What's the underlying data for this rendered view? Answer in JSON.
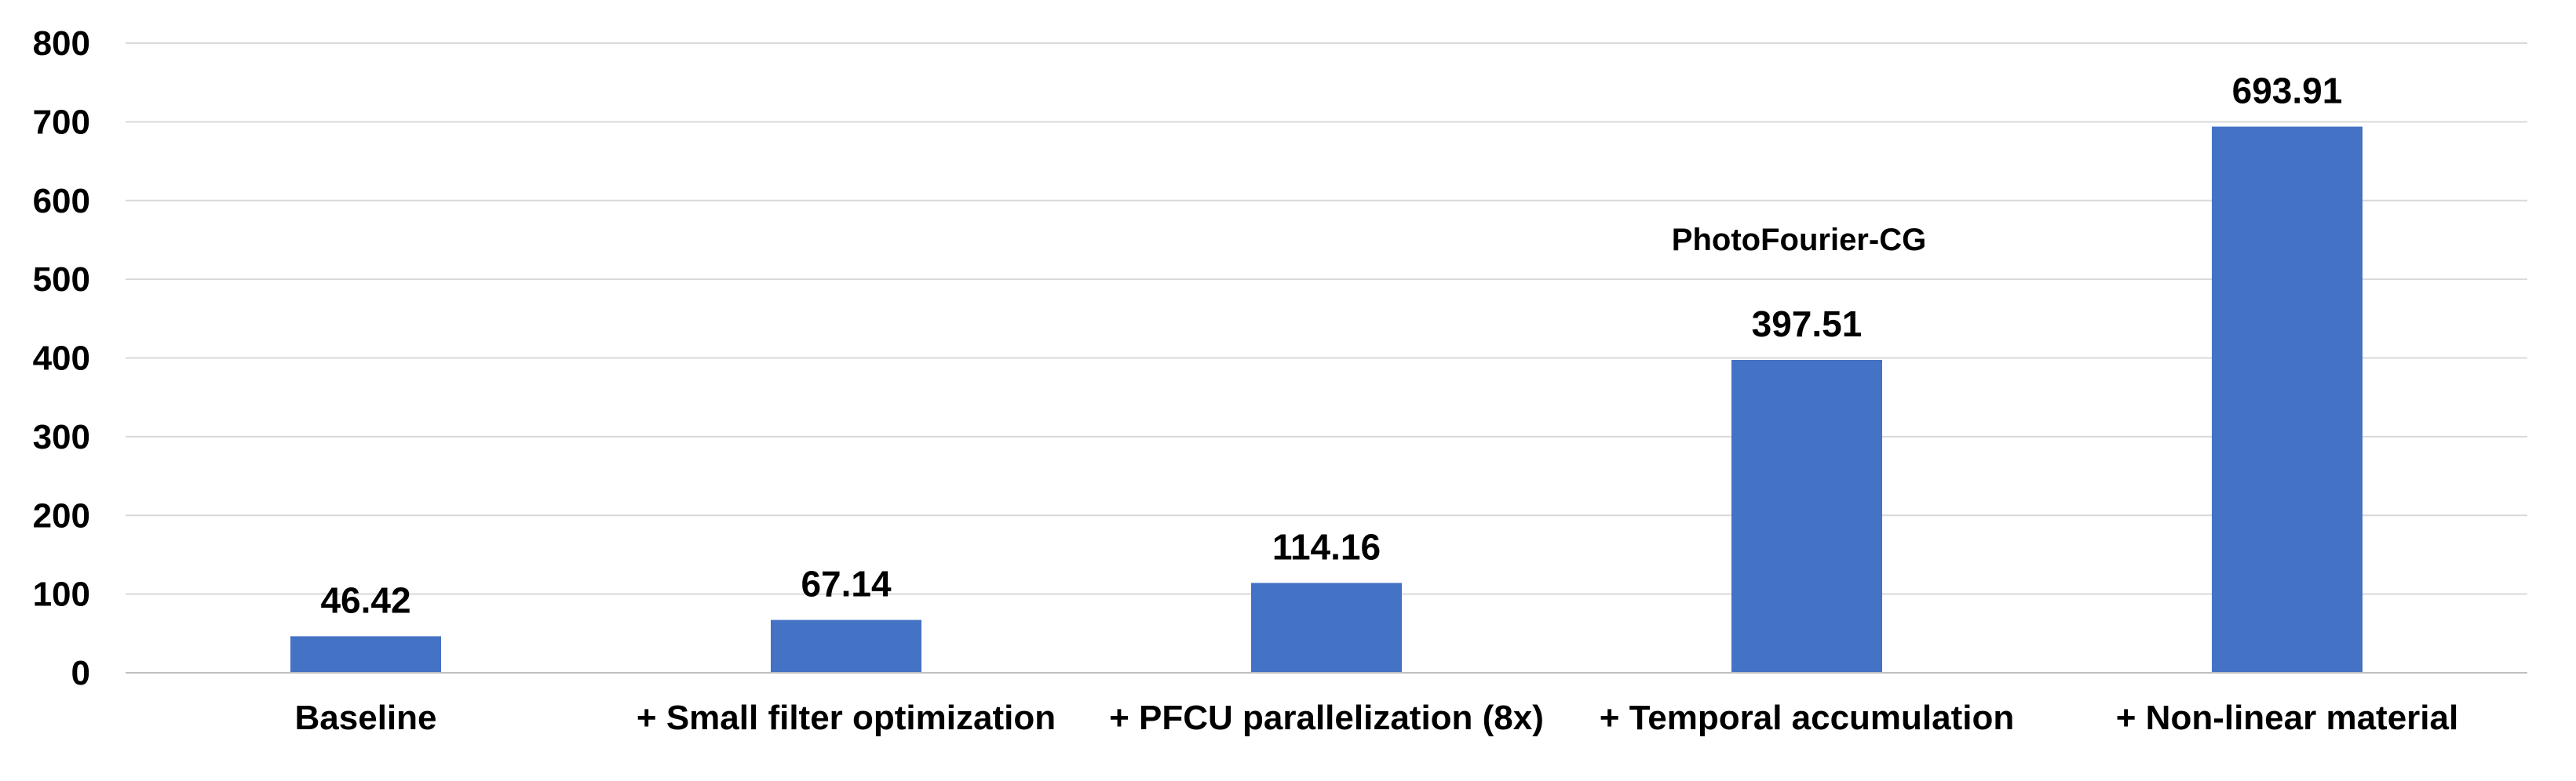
{
  "chart_data": {
    "type": "bar",
    "title": "",
    "xlabel": "",
    "ylabel": "",
    "ylim": [
      0,
      800
    ],
    "yticks": [
      0,
      100,
      200,
      300,
      400,
      500,
      600,
      700,
      800
    ],
    "grid": true,
    "legend": "none",
    "categories": [
      "Baseline",
      "+ Small filter optimization",
      "+ PFCU parallelization (8x)",
      "+ Temporal accumulation",
      "+ Non-linear material"
    ],
    "values": [
      46.42,
      67.14,
      114.16,
      397.51,
      693.91
    ],
    "value_labels": [
      "46.42",
      "67.14",
      "114.16",
      "397.51",
      "693.91"
    ],
    "annotations": [
      {
        "text": "PhotoFourier-CG",
        "category_index": 3
      }
    ],
    "colors": {
      "bar": "#4472C4",
      "grid": "#D9D9D9",
      "axis": "#BFBFBF",
      "text": "#000000"
    }
  }
}
